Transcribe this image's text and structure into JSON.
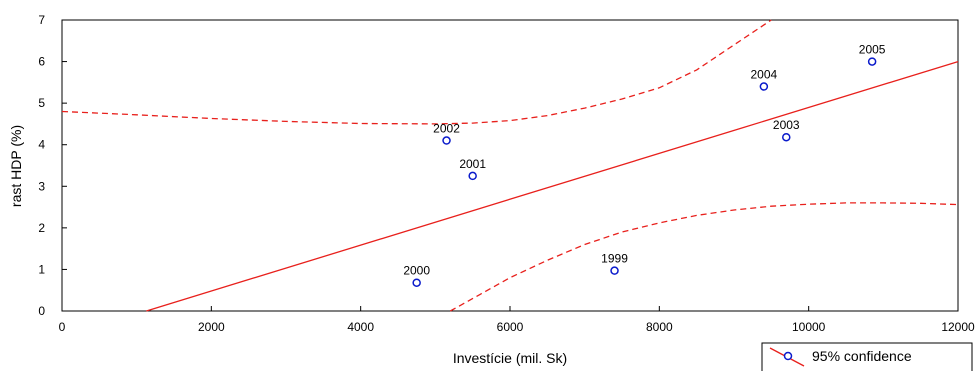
{
  "chart_data": {
    "type": "scatter",
    "xlabel": "Investície (mil. Sk)",
    "ylabel": "rast HDP (%)",
    "xlim": [
      0,
      12000
    ],
    "ylim": [
      0,
      7
    ],
    "x_ticks": [
      0,
      2000,
      4000,
      6000,
      8000,
      10000,
      12000
    ],
    "y_ticks": [
      0,
      1,
      2,
      3,
      4,
      5,
      6,
      7
    ],
    "grid": false,
    "legend_position": "bottom-right",
    "legend_label": "95% confidence",
    "points": [
      {
        "label": "1999",
        "x": 7400,
        "y": 0.97
      },
      {
        "label": "2000",
        "x": 4750,
        "y": 0.68
      },
      {
        "label": "2001",
        "x": 5500,
        "y": 3.25
      },
      {
        "label": "2002",
        "x": 5150,
        "y": 4.1
      },
      {
        "label": "2003",
        "x": 9700,
        "y": 4.18
      },
      {
        "label": "2004",
        "x": 9400,
        "y": 5.4
      },
      {
        "label": "2005",
        "x": 10850,
        "y": 6.0
      }
    ],
    "regression_line": {
      "x": [
        1130,
        12000
      ],
      "y": [
        0,
        6.0
      ]
    },
    "confidence_upper": {
      "x": [
        0,
        1000,
        2000,
        3000,
        4000,
        5000,
        5500,
        6000,
        6500,
        7000,
        7500,
        8000,
        8500,
        9000,
        9500
      ],
      "y": [
        4.8,
        4.72,
        4.63,
        4.56,
        4.51,
        4.5,
        4.52,
        4.58,
        4.7,
        4.88,
        5.1,
        5.37,
        5.8,
        6.4,
        7.0
      ]
    },
    "confidence_lower": {
      "x": [
        5200,
        5600,
        6000,
        6500,
        7000,
        7500,
        8000,
        8500,
        9000,
        9500,
        10000,
        10500,
        11000,
        11500,
        12000
      ],
      "y": [
        0.0,
        0.4,
        0.8,
        1.22,
        1.6,
        1.9,
        2.12,
        2.3,
        2.43,
        2.52,
        2.57,
        2.6,
        2.6,
        2.59,
        2.56
      ]
    },
    "colors": {
      "line": "#e8201c",
      "point": "#0a1acb",
      "axis": "#000000"
    }
  }
}
